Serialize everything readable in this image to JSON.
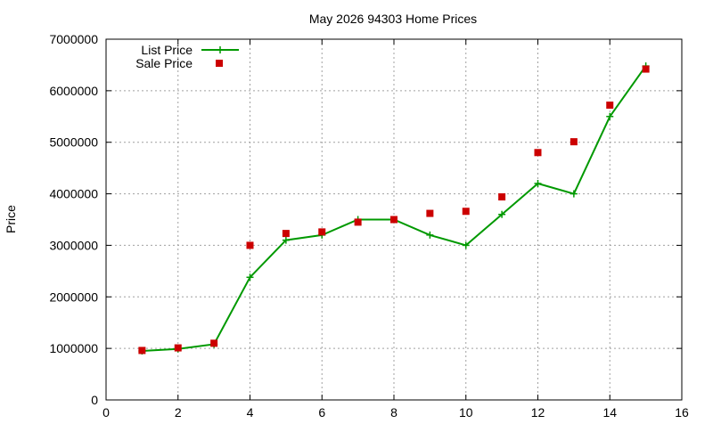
{
  "chart_data": {
    "type": "line",
    "title": "May 2026 94303 Home Prices",
    "xlabel": "",
    "ylabel": "Price",
    "xlim": [
      0,
      16
    ],
    "ylim": [
      0,
      7000000
    ],
    "x_ticks": [
      0,
      2,
      4,
      6,
      8,
      10,
      12,
      14,
      16
    ],
    "y_ticks": [
      0,
      1000000,
      2000000,
      3000000,
      4000000,
      5000000,
      6000000,
      7000000
    ],
    "x_tick_labels": [
      "0",
      "2",
      "4",
      "6",
      "8",
      "10",
      "12",
      "14",
      "16"
    ],
    "y_tick_labels": [
      "0",
      "1000000",
      "2000000",
      "3000000",
      "4000000",
      "5000000",
      "6000000",
      "7000000"
    ],
    "grid": true,
    "legend_position": "top-left",
    "series": [
      {
        "name": "List Price",
        "style": "line-with-plus-markers",
        "color": "#009900",
        "x": [
          1,
          2,
          3,
          4,
          5,
          6,
          7,
          8,
          9,
          10,
          11,
          12,
          13,
          14,
          15
        ],
        "y": [
          950000,
          990000,
          1080000,
          2380000,
          3100000,
          3200000,
          3500000,
          3500000,
          3200000,
          3000000,
          3600000,
          4200000,
          4000000,
          5500000,
          6480000
        ]
      },
      {
        "name": "Sale Price",
        "style": "square-markers",
        "color": "#cc0000",
        "x": [
          1,
          2,
          3,
          4,
          5,
          6,
          7,
          8,
          9,
          10,
          11,
          12,
          13,
          14,
          15
        ],
        "y": [
          960000,
          1010000,
          1100000,
          3000000,
          3230000,
          3260000,
          3450000,
          3500000,
          3620000,
          3660000,
          3940000,
          4800000,
          5010000,
          5720000,
          6420000
        ]
      }
    ]
  }
}
